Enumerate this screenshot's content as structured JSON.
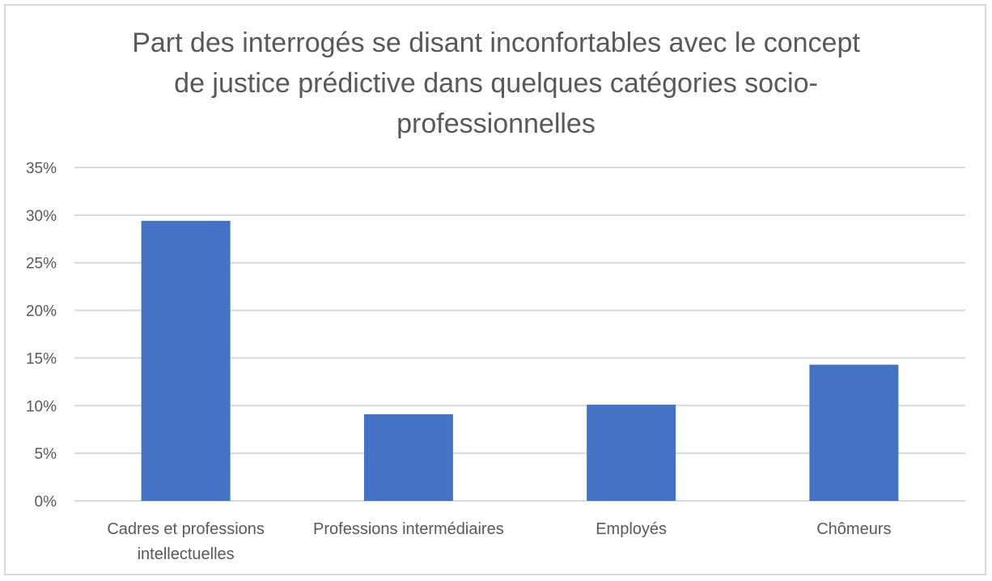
{
  "chart_data": {
    "type": "bar",
    "title_lines": [
      "Part des interrogés se disant inconfortables avec le concept",
      "de justice prédictive dans quelques catégories socio-",
      "professionnelles"
    ],
    "categories": [
      [
        "Cadres et professions",
        "intellectuelles"
      ],
      [
        "Professions intermédiaires"
      ],
      [
        "Employés"
      ],
      [
        "Chômeurs"
      ]
    ],
    "values": [
      29.4,
      9.1,
      10.1,
      14.3
    ],
    "ylim": [
      0,
      35
    ],
    "yticks": [
      0,
      5,
      10,
      15,
      20,
      25,
      30,
      35
    ],
    "ytick_labels": [
      "0%",
      "5%",
      "10%",
      "15%",
      "20%",
      "25%",
      "30%",
      "35%"
    ],
    "grid": true,
    "bar_color": "#4472c4",
    "grid_color": "#d9d9d9"
  }
}
